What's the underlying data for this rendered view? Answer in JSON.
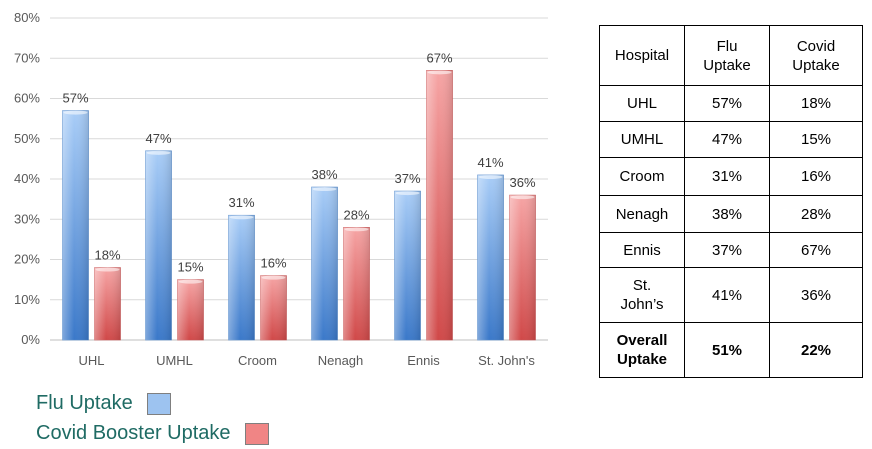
{
  "chart_data": {
    "type": "bar",
    "categories": [
      "UHL",
      "UMHL",
      "Croom",
      "Nenagh",
      "Ennis",
      "St. John's"
    ],
    "series": [
      {
        "name": "Flu Uptake",
        "values": [
          57,
          47,
          31,
          38,
          37,
          41
        ],
        "labels": [
          "57%",
          "47%",
          "31%",
          "38%",
          "37%",
          "41%"
        ],
        "color": "#5b9bd5"
      },
      {
        "name": "Covid Booster Uptake",
        "values": [
          18,
          15,
          16,
          28,
          67,
          36
        ],
        "labels": [
          "18%",
          "15%",
          "16%",
          "28%",
          "67%",
          "36%"
        ],
        "color": "#e06666"
      }
    ],
    "ylim": [
      0,
      80
    ],
    "yticks": [
      0,
      10,
      20,
      30,
      40,
      50,
      60,
      70,
      80
    ],
    "ytick_labels": [
      "0%",
      "10%",
      "20%",
      "30%",
      "40%",
      "50%",
      "60%",
      "70%",
      "80%"
    ],
    "grid": true,
    "title": "",
    "xlabel": "",
    "ylabel": ""
  },
  "legend": [
    {
      "label": "Flu Uptake",
      "color": "#9dc3f0"
    },
    {
      "label": "Covid Booster Uptake",
      "color": "#f08585"
    }
  ],
  "table": {
    "headers": [
      "Hospital",
      "Flu\nUptake",
      "Covid\nUptake"
    ],
    "rows": [
      [
        "UHL",
        "57%",
        "18%"
      ],
      [
        "UMHL",
        "47%",
        "15%"
      ],
      [
        "Croom",
        "31%",
        "16%"
      ],
      [
        "Nenagh",
        "38%",
        "28%"
      ],
      [
        "Ennis",
        "37%",
        "67%"
      ],
      [
        "St.\nJohn’s",
        "41%",
        "36%"
      ]
    ],
    "overall": [
      "Overall\nUptake",
      "51%",
      "22%"
    ]
  }
}
